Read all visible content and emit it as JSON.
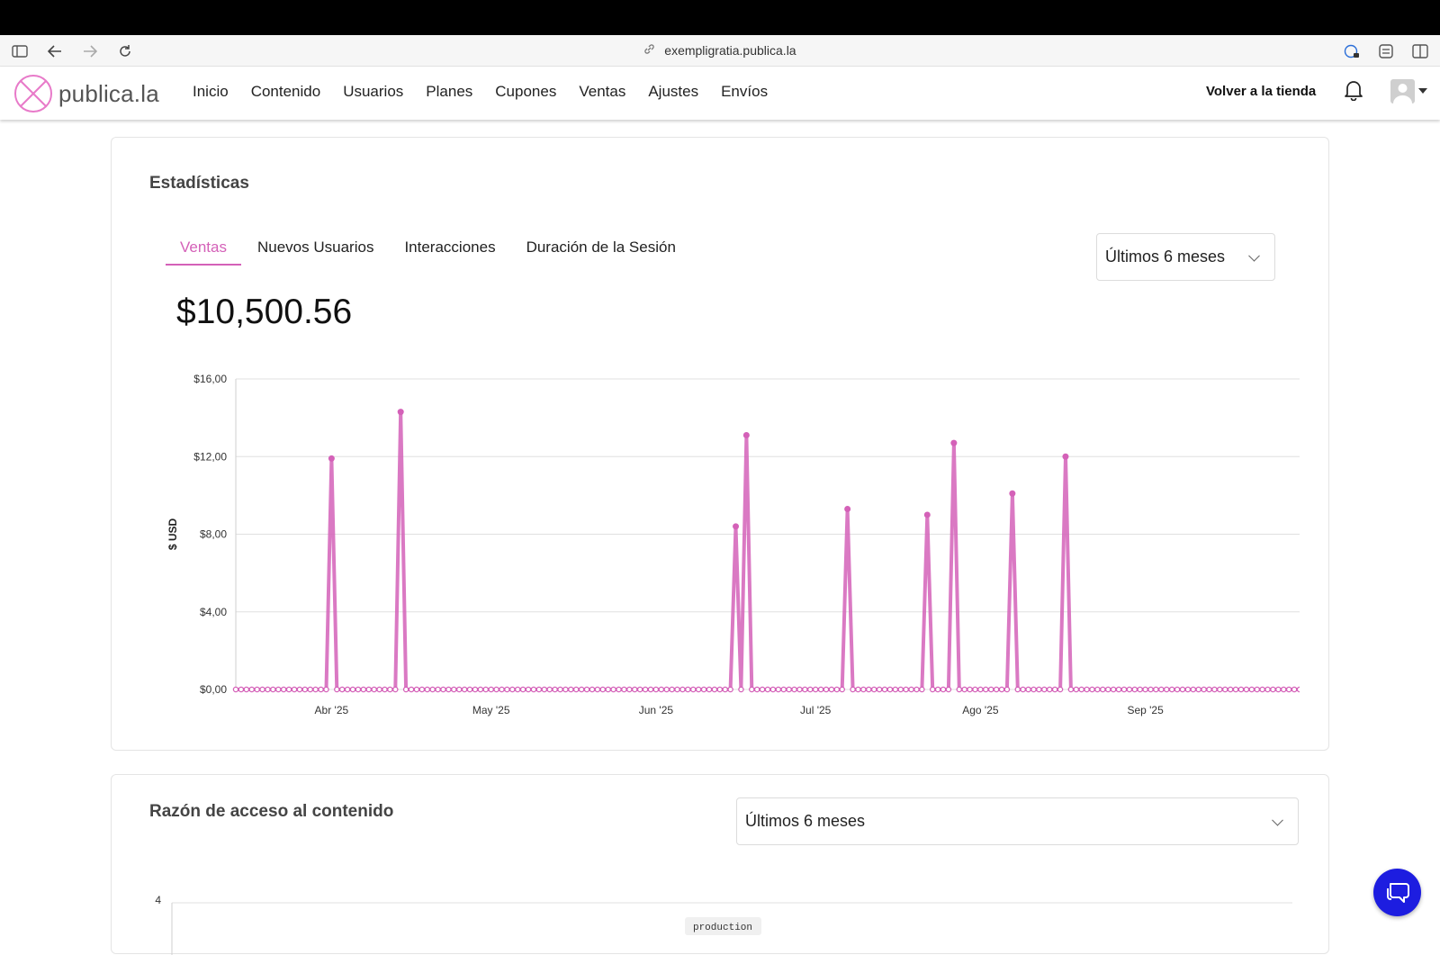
{
  "browser": {
    "url": "exempligratia.publica.la"
  },
  "app": {
    "logo_text": "publica.la",
    "nav": [
      "Inicio",
      "Contenido",
      "Usuarios",
      "Planes",
      "Cupones",
      "Ventas",
      "Ajustes",
      "Envíos"
    ],
    "back_to_store": "Volver a la tienda",
    "accent_color": "#d461b8"
  },
  "stats_card": {
    "title": "Estadísticas",
    "tabs": [
      "Ventas",
      "Nuevos Usuarios",
      "Interacciones",
      "Duración de la Sesión"
    ],
    "active_tab": 0,
    "range_select": "Últimos 6 meses",
    "total": "$10,500.56"
  },
  "chart_data": {
    "type": "line",
    "ylabel": "$ USD",
    "ylim": [
      0,
      16
    ],
    "yticks": [
      "$0,00",
      "$4,00",
      "$8,00",
      "$12,00",
      "$16,00"
    ],
    "xticks": [
      {
        "label": "Abr '25",
        "date": "2025-04-01"
      },
      {
        "label": "May '25",
        "date": "2025-05-01"
      },
      {
        "label": "Jun '25",
        "date": "2025-06-01"
      },
      {
        "label": "Jul '25",
        "date": "2025-07-01"
      },
      {
        "label": "Ago '25",
        "date": "2025-08-01"
      },
      {
        "label": "Sep '25",
        "date": "2025-09-01"
      }
    ],
    "x_range": [
      "2025-03-14",
      "2025-09-30"
    ],
    "grid": true,
    "color": "#d461b8",
    "points": [
      {
        "date": "2025-04-01",
        "value": 11.9
      },
      {
        "date": "2025-04-14",
        "value": 14.3
      },
      {
        "date": "2025-06-16",
        "value": 8.4
      },
      {
        "date": "2025-06-18",
        "value": 13.1
      },
      {
        "date": "2025-07-07",
        "value": 9.3
      },
      {
        "date": "2025-07-22",
        "value": 9.0
      },
      {
        "date": "2025-07-27",
        "value": 12.7
      },
      {
        "date": "2025-08-07",
        "value": 10.1
      },
      {
        "date": "2025-08-17",
        "value": 12.0
      }
    ]
  },
  "access_card": {
    "title": "Razón de acceso al contenido",
    "range_select": "Últimos 6 meses",
    "y_top_tick": "4",
    "badge": "production"
  }
}
